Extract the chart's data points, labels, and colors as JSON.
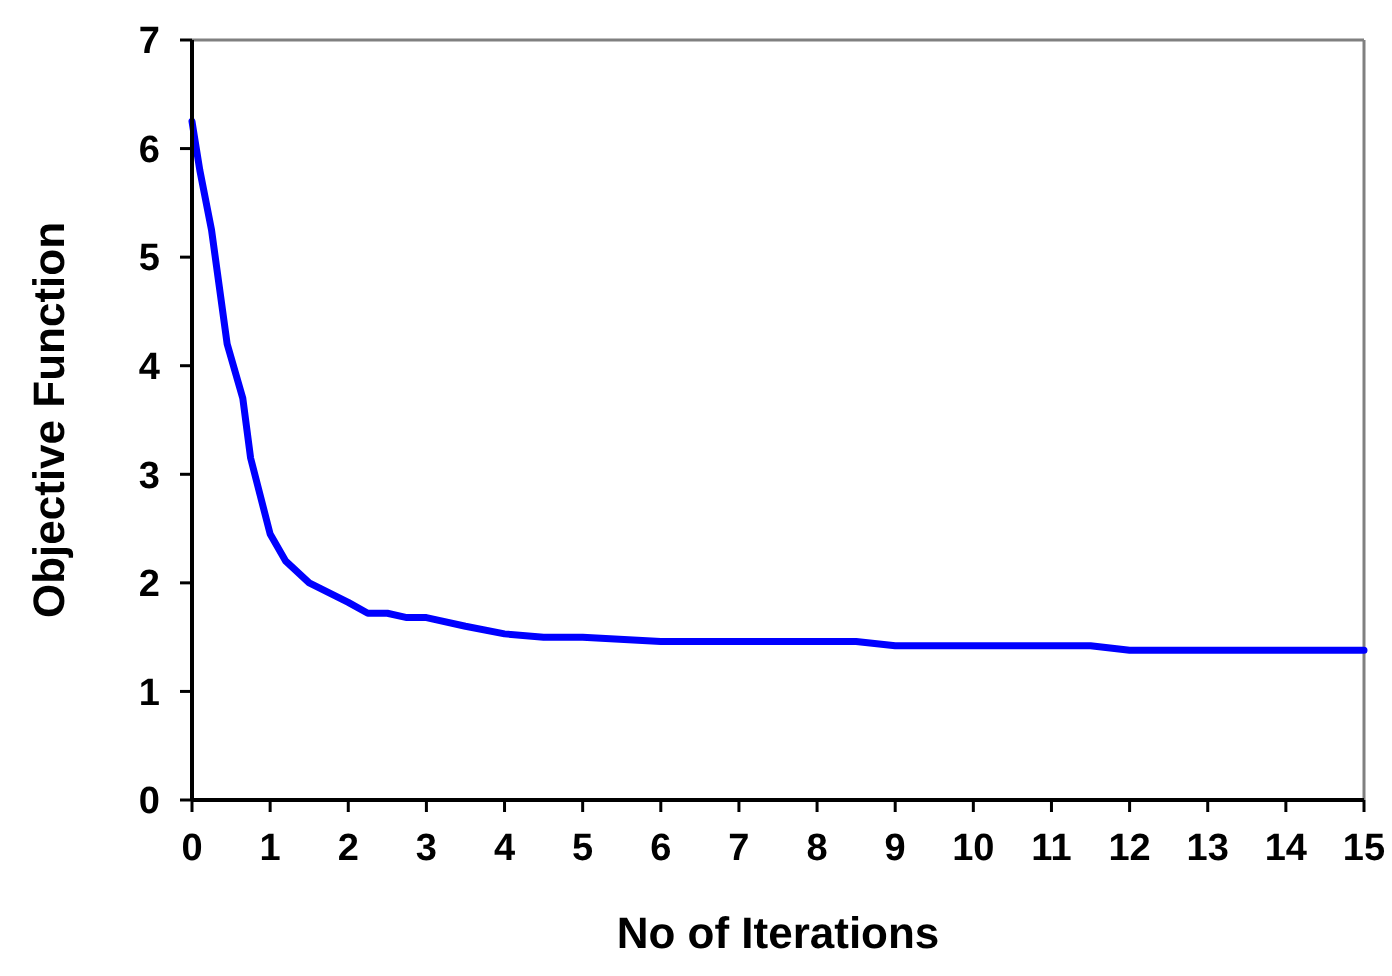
{
  "chart_data": {
    "type": "line",
    "xlabel": "No of Iterations",
    "ylabel": "Objective Function",
    "xlim": [
      0,
      15
    ],
    "xticks": [
      0,
      1,
      2,
      3,
      4,
      5,
      6,
      7,
      8,
      9,
      10,
      11,
      12,
      13,
      14,
      15
    ],
    "ylim": [
      0,
      7
    ],
    "yticks": [
      0,
      1,
      2,
      3,
      4,
      5,
      6,
      7
    ],
    "line_style": "solid",
    "series": [
      {
        "color": "#0000ff",
        "x": [
          0,
          0.1,
          0.25,
          0.45,
          0.65,
          0.75,
          1,
          1.2,
          1.5,
          2,
          2.25,
          2.5,
          2.75,
          3,
          3.5,
          4,
          4.5,
          5,
          6,
          7,
          8,
          8.5,
          9,
          10,
          11,
          11.5,
          12,
          13,
          14,
          15
        ],
        "values": [
          6.25,
          5.8,
          5.25,
          4.2,
          3.7,
          3.15,
          2.45,
          2.2,
          2.0,
          1.82,
          1.72,
          1.72,
          1.68,
          1.68,
          1.6,
          1.53,
          1.5,
          1.5,
          1.46,
          1.46,
          1.46,
          1.46,
          1.42,
          1.42,
          1.42,
          1.42,
          1.38,
          1.38,
          1.38,
          1.38
        ]
      }
    ]
  }
}
